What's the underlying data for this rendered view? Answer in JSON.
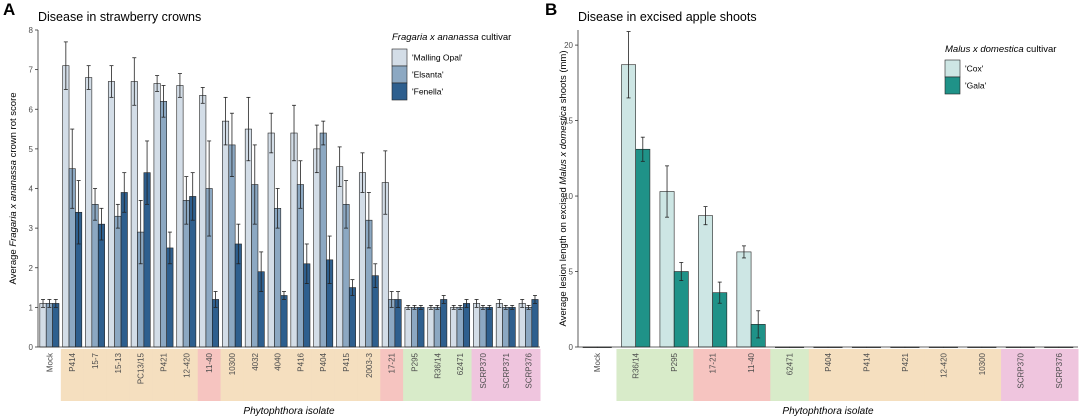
{
  "chart_data": [
    {
      "panel_label": "A",
      "type": "bar",
      "title": "Disease in strawberry crowns",
      "xlabel": "Phytophthora isolate",
      "ylabel_parts": [
        "Average ",
        "Fragaria x ananassa",
        " crown rot score"
      ],
      "ylim": [
        0,
        8
      ],
      "yticks": [
        "0",
        "1",
        "2",
        "3",
        "4",
        "5",
        "6",
        "7",
        "8"
      ],
      "legend": {
        "title_italic": "Fragaria x ananassa",
        "title_rest": " cultivar",
        "position": "top-right"
      },
      "categories": [
        "Mock",
        "P414",
        "15-7",
        "15-13",
        "PC13/15",
        "P421",
        "12-420",
        "11-40",
        "10300",
        "4032",
        "4040",
        "P416",
        "P404",
        "P415",
        "2003-3",
        "17-21",
        "P295",
        "R36/14",
        "62471",
        "SCRP370",
        "SCRP371",
        "SCRP376"
      ],
      "category_groups": [
        "none",
        "orange",
        "orange",
        "orange",
        "orange",
        "orange",
        "orange",
        "red",
        "orange",
        "orange",
        "orange",
        "orange",
        "orange",
        "orange",
        "orange",
        "red",
        "green",
        "green",
        "green",
        "pink",
        "pink",
        "pink"
      ],
      "series": [
        {
          "name": "'Malling Opal'",
          "color": "#d3dde7",
          "values": [
            1.1,
            7.1,
            6.8,
            6.7,
            6.7,
            6.65,
            6.6,
            6.35,
            5.7,
            5.5,
            5.4,
            5.4,
            5.0,
            4.55,
            4.4,
            4.15,
            1.0,
            1.0,
            1.0,
            1.1,
            1.1,
            1.1
          ],
          "errors": [
            0.1,
            0.6,
            0.3,
            0.4,
            0.6,
            0.2,
            0.3,
            0.2,
            0.6,
            0.8,
            0.5,
            0.7,
            0.6,
            0.5,
            0.5,
            0.8,
            0.05,
            0.05,
            0.05,
            0.1,
            0.1,
            0.1
          ]
        },
        {
          "name": "'Elsanta'",
          "color": "#8ca8c2",
          "values": [
            1.1,
            4.5,
            3.6,
            3.3,
            2.9,
            6.2,
            3.7,
            4.0,
            5.1,
            4.1,
            3.5,
            4.1,
            5.4,
            3.6,
            3.2,
            1.2,
            1.0,
            1.0,
            1.0,
            1.0,
            1.0,
            1.0
          ],
          "errors": [
            0.1,
            1.0,
            0.4,
            0.3,
            0.8,
            0.4,
            0.6,
            1.2,
            0.8,
            1.0,
            0.5,
            0.6,
            0.3,
            0.6,
            0.7,
            0.2,
            0.05,
            0.05,
            0.05,
            0.05,
            0.05,
            0.05
          ]
        },
        {
          "name": "'Fenella'",
          "color": "#2e5f8e",
          "values": [
            1.1,
            3.4,
            3.1,
            3.9,
            4.4,
            2.5,
            3.8,
            1.2,
            2.6,
            1.9,
            1.3,
            2.1,
            2.2,
            1.5,
            1.8,
            1.2,
            1.0,
            1.2,
            1.1,
            1.0,
            1.0,
            1.2
          ],
          "errors": [
            0.1,
            0.8,
            0.4,
            0.5,
            0.8,
            0.4,
            0.6,
            0.2,
            0.5,
            0.5,
            0.1,
            0.5,
            0.6,
            0.2,
            0.3,
            0.2,
            0.05,
            0.1,
            0.1,
            0.05,
            0.05,
            0.1
          ]
        }
      ]
    },
    {
      "panel_label": "B",
      "type": "bar",
      "title": "Disease in excised apple shoots",
      "xlabel": "Phytophthora isolate",
      "ylabel_parts": [
        "Average lesion length on excised ",
        "Malus x domestica",
        " shoots (mm)"
      ],
      "ylim": [
        0,
        21
      ],
      "yticks": [
        "0",
        "5",
        "10",
        "15",
        "20"
      ],
      "legend": {
        "title_italic": "Malus x domestica",
        "title_rest": " cultivar",
        "position": "top-right"
      },
      "categories": [
        "Mock",
        "R36/14",
        "P295",
        "17-21",
        "11-40",
        "62471",
        "P404",
        "P414",
        "P421",
        "12-420",
        "10300",
        "SCRP370",
        "SCRP376"
      ],
      "category_groups": [
        "none",
        "green",
        "green",
        "red",
        "red",
        "green",
        "orange",
        "orange",
        "orange",
        "orange",
        "orange",
        "pink",
        "pink"
      ],
      "series": [
        {
          "name": "'Cox'",
          "color": "#cde6e4",
          "values": [
            0,
            18.7,
            10.3,
            8.7,
            6.3,
            0,
            0,
            0,
            0,
            0,
            0,
            0,
            0
          ],
          "errors": [
            0,
            2.2,
            1.7,
            0.6,
            0.4,
            0,
            0,
            0,
            0,
            0,
            0,
            0,
            0
          ]
        },
        {
          "name": "'Gala'",
          "color": "#1f9288",
          "values": [
            0,
            13.1,
            5.0,
            3.6,
            1.5,
            0,
            0,
            0,
            0,
            0,
            0,
            0,
            0
          ],
          "errors": [
            0,
            0.8,
            0.6,
            0.7,
            0.9,
            0,
            0,
            0,
            0,
            0,
            0,
            0,
            0
          ]
        }
      ]
    }
  ],
  "group_colors": {
    "none": "#ffffff",
    "orange": "#f5dfbf",
    "red": "#f6c4c0",
    "green": "#d8ebc9",
    "pink": "#efc5de"
  }
}
